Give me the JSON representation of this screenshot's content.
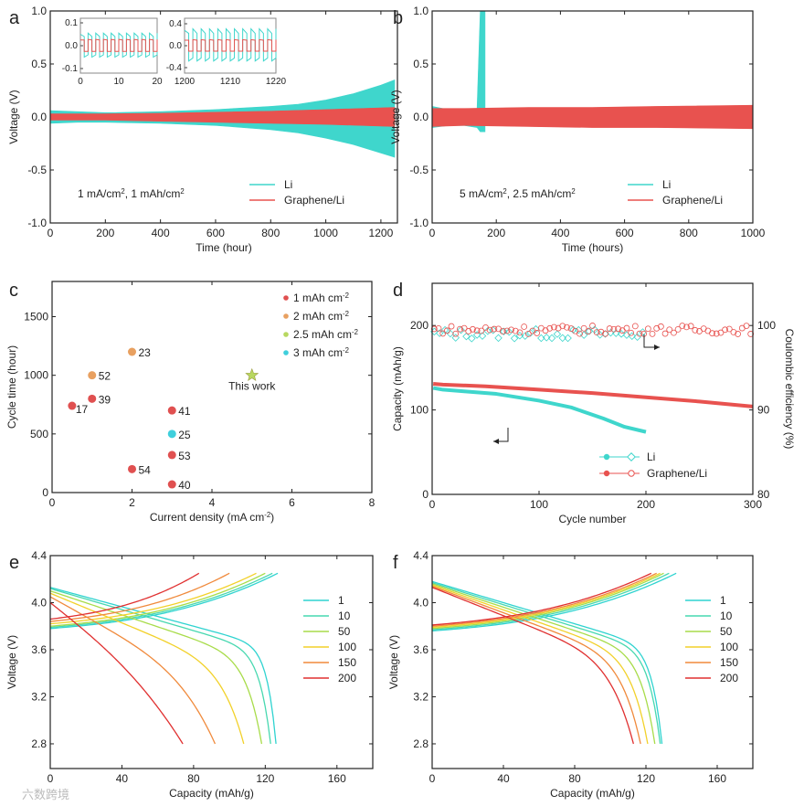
{
  "watermark": "六数跨境",
  "colors": {
    "li": "#3fd6cc",
    "graphene": "#e8524f",
    "c_1": "#e05050",
    "c_2": "#e8a060",
    "c_2_5": "#b8d860",
    "c_3": "#3fcfdc",
    "star": "#b8d860"
  },
  "chart_data": [
    {
      "panel": "a",
      "type": "line",
      "xlabel": "Time (hour)",
      "ylabel": "Voltage (V)",
      "xlim": [
        0,
        1260
      ],
      "ylim": [
        -1,
        1
      ],
      "xticks": [
        "0",
        "200",
        "400",
        "600",
        "800",
        "1000",
        "1200"
      ],
      "yticks": [
        "-1.0",
        "-0.5",
        "0.0",
        "0.5",
        "1.0"
      ],
      "annotation": "1 mA/cm^2, 1 mAh/cm^2",
      "legend": [
        "Li",
        "Graphene/Li"
      ],
      "legend_position": "bottom-right",
      "series": [
        {
          "name": "Li",
          "t": [
            0,
            100,
            200,
            400,
            600,
            800,
            900,
            1000,
            1100,
            1200,
            1250
          ],
          "upper": [
            0.06,
            0.05,
            0.04,
            0.05,
            0.07,
            0.1,
            0.12,
            0.16,
            0.22,
            0.3,
            0.35
          ],
          "lower": [
            -0.06,
            -0.05,
            -0.05,
            -0.06,
            -0.08,
            -0.12,
            -0.15,
            -0.2,
            -0.26,
            -0.34,
            -0.38
          ]
        },
        {
          "name": "Graphene/Li",
          "t": [
            0,
            200,
            400,
            600,
            800,
            1000,
            1250
          ],
          "upper": [
            0.03,
            0.03,
            0.035,
            0.045,
            0.055,
            0.07,
            0.09
          ],
          "lower": [
            -0.03,
            -0.03,
            -0.04,
            -0.05,
            -0.06,
            -0.07,
            -0.09
          ]
        }
      ],
      "insets": [
        {
          "xlim": [
            0,
            20
          ],
          "ylim": [
            -0.12,
            0.12
          ],
          "xticks": [
            "0",
            "10",
            "20"
          ],
          "yticks": [
            "-0.1",
            "0.0",
            "0.1"
          ],
          "li_amplitude": 0.05,
          "graphene_amplitude": 0.025,
          "periods": 10
        },
        {
          "xlim": [
            1200,
            1220
          ],
          "ylim": [
            -0.5,
            0.5
          ],
          "xticks": [
            "1200",
            "1210",
            "1220"
          ],
          "yticks": [
            "-0.4",
            "0.0",
            "0.4"
          ],
          "li_amplitude": 0.28,
          "graphene_amplitude": 0.1,
          "periods": 11
        }
      ]
    },
    {
      "panel": "b",
      "type": "line",
      "xlabel": "Time (hours)",
      "ylabel": "Voltage (V)",
      "xlim": [
        0,
        1000
      ],
      "ylim": [
        -1,
        1
      ],
      "xticks": [
        "0",
        "200",
        "400",
        "600",
        "800",
        "1000"
      ],
      "yticks": [
        "-1.0",
        "-0.5",
        "0.0",
        "0.5",
        "1.0"
      ],
      "annotation": "5 mA/cm^2, 2.5 mAh/cm^2",
      "legend": [
        "Li",
        "Graphene/Li"
      ],
      "legend_position": "bottom-right",
      "series": [
        {
          "name": "Li",
          "t": [
            0,
            50,
            100,
            140,
            150,
            165
          ],
          "upper": [
            0.1,
            0.07,
            0.07,
            0.08,
            1.0,
            1.0
          ],
          "lower": [
            -0.1,
            -0.08,
            -0.08,
            -0.1,
            -0.14,
            -0.14
          ]
        },
        {
          "name": "Graphene/Li",
          "t": [
            0,
            100,
            300,
            500,
            700,
            1000
          ],
          "upper": [
            0.08,
            0.08,
            0.09,
            0.09,
            0.1,
            0.11
          ],
          "lower": [
            -0.09,
            -0.08,
            -0.09,
            -0.1,
            -0.1,
            -0.11
          ]
        }
      ]
    },
    {
      "panel": "c",
      "type": "scatter",
      "xlabel": "Current density (mA cm^-2)",
      "ylabel": "Cycle time (hour)",
      "xlim": [
        0,
        8
      ],
      "ylim": [
        0,
        1800
      ],
      "xticks": [
        "0",
        "2",
        "4",
        "6",
        "8"
      ],
      "yticks": [
        "0",
        "500",
        "1000",
        "1500"
      ],
      "legend": [
        "1 mAh cm^-2",
        "2 mAh cm^-2",
        "2.5 mAh cm^-2",
        "3 mAh cm^-2"
      ],
      "legend_position": "top-right",
      "points": [
        {
          "x": 0.5,
          "y": 740,
          "label": "17",
          "group": 0
        },
        {
          "x": 1,
          "y": 800,
          "label": "39",
          "group": 0
        },
        {
          "x": 1,
          "y": 1000,
          "label": "52",
          "group": 1
        },
        {
          "x": 2,
          "y": 1200,
          "label": "23",
          "group": 1
        },
        {
          "x": 2,
          "y": 200,
          "label": "54",
          "group": 0
        },
        {
          "x": 3,
          "y": 700,
          "label": "41",
          "group": 0
        },
        {
          "x": 3,
          "y": 500,
          "label": "25",
          "group": 3
        },
        {
          "x": 3,
          "y": 320,
          "label": "53",
          "group": 0
        },
        {
          "x": 3,
          "y": 70,
          "label": "40",
          "group": 0
        }
      ],
      "this_work": {
        "x": 5,
        "y": 1000,
        "label": "This work",
        "group": 2
      }
    },
    {
      "panel": "d",
      "type": "line",
      "xlabel": "Cycle number",
      "ylabel": "Capacity (mAh/g)",
      "y2label": "Coulombic efficiency (%)",
      "xlim": [
        0,
        300
      ],
      "ylim": [
        0,
        250
      ],
      "y2lim": [
        80,
        105
      ],
      "xticks": [
        "0",
        "100",
        "200",
        "300"
      ],
      "yticks": [
        "0",
        "100",
        "200"
      ],
      "y2ticks": [
        "80",
        "90",
        "100"
      ],
      "legend": [
        "Li",
        "Graphene/Li"
      ],
      "legend_position": "bottom-right",
      "capacity": [
        {
          "name": "Li",
          "x": [
            1,
            10,
            30,
            60,
            100,
            130,
            160,
            180,
            200
          ],
          "y": [
            126,
            124,
            122,
            119,
            111,
            103,
            90,
            80,
            74
          ]
        },
        {
          "name": "Graphene/Li",
          "x": [
            1,
            10,
            50,
            100,
            150,
            200,
            250,
            300
          ],
          "y": [
            131,
            130,
            128,
            124,
            120,
            115,
            110,
            104
          ]
        }
      ],
      "coulombic_efficiency": [
        {
          "name": "Li",
          "cycles": 200,
          "mean": 99.0,
          "spread": 0.6,
          "step": 5
        },
        {
          "name": "Graphene/Li",
          "cycles": 300,
          "mean": 99.5,
          "spread": 0.5,
          "step": 4
        }
      ]
    },
    {
      "panel": "e",
      "type": "line",
      "xlabel": "Capacity (mAh/g)",
      "ylabel": "Voltage (V)",
      "xlim": [
        0,
        180
      ],
      "ylim": [
        2.59,
        4.4
      ],
      "xticks": [
        "0",
        "40",
        "80",
        "120",
        "160"
      ],
      "yticks": [
        "2.8",
        "3.2",
        "3.6",
        "4.0",
        "4.4"
      ],
      "legend_position": "right",
      "series": [
        {
          "name": "1",
          "color": "#2fd3d0",
          "charge_capacity": 127,
          "discharge_capacity": 126,
          "charge_start": 3.78,
          "discharge_start": 4.13,
          "discharge_slope": 0.52,
          "discharge_knee": 25
        },
        {
          "name": "10",
          "color": "#47d8b0",
          "charge_capacity": 124,
          "discharge_capacity": 123,
          "charge_start": 3.79,
          "discharge_start": 4.12,
          "discharge_slope": 0.55,
          "discharge_knee": 20
        },
        {
          "name": "50",
          "color": "#a8dc4a",
          "charge_capacity": 120,
          "discharge_capacity": 118,
          "charge_start": 3.8,
          "discharge_start": 4.1,
          "discharge_slope": 0.6,
          "discharge_knee": 14
        },
        {
          "name": "100",
          "color": "#f2d12a",
          "charge_capacity": 115,
          "discharge_capacity": 108,
          "charge_start": 3.82,
          "discharge_start": 4.08,
          "discharge_slope": 0.68,
          "discharge_knee": 9
        },
        {
          "name": "150",
          "color": "#f08a3c",
          "charge_capacity": 100,
          "discharge_capacity": 92,
          "charge_start": 3.84,
          "discharge_start": 4.05,
          "discharge_slope": 0.78,
          "discharge_knee": 5
        },
        {
          "name": "200",
          "color": "#e03030",
          "charge_capacity": 83,
          "discharge_capacity": 74,
          "charge_start": 3.86,
          "discharge_start": 4.0,
          "discharge_slope": 0.9,
          "discharge_knee": 3
        }
      ]
    },
    {
      "panel": "f",
      "type": "line",
      "xlabel": "Capacity (mAh/g)",
      "ylabel": "Voltage (V)",
      "xlim": [
        0,
        180
      ],
      "ylim": [
        2.59,
        4.4
      ],
      "xticks": [
        "0",
        "40",
        "80",
        "120",
        "160"
      ],
      "yticks": [
        "2.8",
        "3.2",
        "3.6",
        "4.0",
        "4.4"
      ],
      "legend_position": "right",
      "series": [
        {
          "name": "1",
          "color": "#2fd3d0",
          "charge_capacity": 137,
          "discharge_capacity": 129,
          "charge_start": 3.76,
          "discharge_start": 4.18,
          "discharge_slope": 0.58,
          "discharge_knee": 22
        },
        {
          "name": "10",
          "color": "#47d8b0",
          "charge_capacity": 133,
          "discharge_capacity": 128,
          "charge_start": 3.77,
          "discharge_start": 4.17,
          "discharge_slope": 0.6,
          "discharge_knee": 20
        },
        {
          "name": "50",
          "color": "#a8dc4a",
          "charge_capacity": 130,
          "discharge_capacity": 125,
          "charge_start": 3.78,
          "discharge_start": 4.16,
          "discharge_slope": 0.62,
          "discharge_knee": 16
        },
        {
          "name": "100",
          "color": "#f2d12a",
          "charge_capacity": 128,
          "discharge_capacity": 121,
          "charge_start": 3.79,
          "discharge_start": 4.15,
          "discharge_slope": 0.64,
          "discharge_knee": 13
        },
        {
          "name": "150",
          "color": "#f08a3c",
          "charge_capacity": 126,
          "discharge_capacity": 117,
          "charge_start": 3.8,
          "discharge_start": 4.14,
          "discharge_slope": 0.66,
          "discharge_knee": 11
        },
        {
          "name": "200",
          "color": "#e03030",
          "charge_capacity": 123,
          "discharge_capacity": 113,
          "charge_start": 3.81,
          "discharge_start": 4.13,
          "discharge_slope": 0.68,
          "discharge_knee": 9
        }
      ]
    }
  ]
}
